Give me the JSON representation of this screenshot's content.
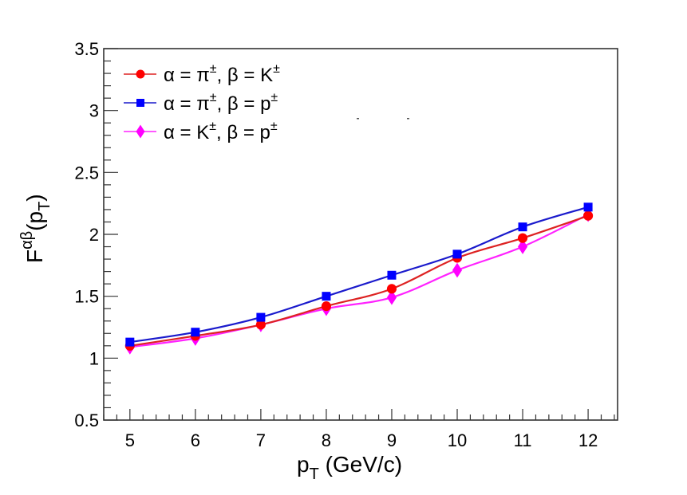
{
  "chart_data": {
    "type": "line",
    "title": "",
    "xlabel": "p_T (GeV/c)",
    "xlabel_parts": {
      "main": "p",
      "sub": "T",
      "rest": " (GeV/c)"
    },
    "ylabel": "F^{αβ}(p_T)",
    "ylabel_parts": {
      "main": "F",
      "sup": "αβ",
      "open": "(p",
      "sub": "T",
      "close": ")"
    },
    "xlim": [
      4.6,
      12.45
    ],
    "ylim": [
      0.5,
      3.5
    ],
    "x_ticks": [
      5,
      6,
      7,
      8,
      9,
      10,
      11,
      12
    ],
    "x_tick_labels": [
      "5",
      "6",
      "7",
      "8",
      "9",
      "10",
      "11",
      "12"
    ],
    "y_ticks": [
      0.5,
      1,
      1.5,
      2,
      2.5,
      3,
      3.5
    ],
    "y_tick_labels": [
      "0.5",
      "1",
      "1.5",
      "2",
      "2.5",
      "3",
      "3.5"
    ],
    "grid": false,
    "legend_position": "top-left",
    "x": [
      5,
      6,
      7,
      8,
      9,
      10,
      11,
      12
    ],
    "series": [
      {
        "name": "α = π±, β = K±",
        "legend": {
          "a": "α = π",
          "a_sup": "±",
          "b": ", β = K",
          "b_sup": "±"
        },
        "color": "#ff0000",
        "line_color": "#dd2222",
        "marker": "circle",
        "values": [
          1.1,
          1.18,
          1.27,
          1.42,
          1.56,
          1.81,
          1.97,
          2.15
        ]
      },
      {
        "name": "α = π±, β = p±",
        "legend": {
          "a": "α = π",
          "a_sup": "±",
          "b": ", β = p",
          "b_sup": "±"
        },
        "color": "#0000ff",
        "line_color": "#1a1acc",
        "marker": "square",
        "values": [
          1.13,
          1.21,
          1.33,
          1.5,
          1.67,
          1.84,
          2.06,
          2.22
        ]
      },
      {
        "name": "α = K±, β = p±",
        "legend": {
          "a": "α = K",
          "a_sup": "±",
          "b": ", β = p",
          "b_sup": "±"
        },
        "color": "#ff00ff",
        "line_color": "#ff22ff",
        "marker": "diamond",
        "values": [
          1.09,
          1.16,
          1.27,
          1.4,
          1.49,
          1.71,
          1.9,
          2.16
        ]
      }
    ]
  }
}
